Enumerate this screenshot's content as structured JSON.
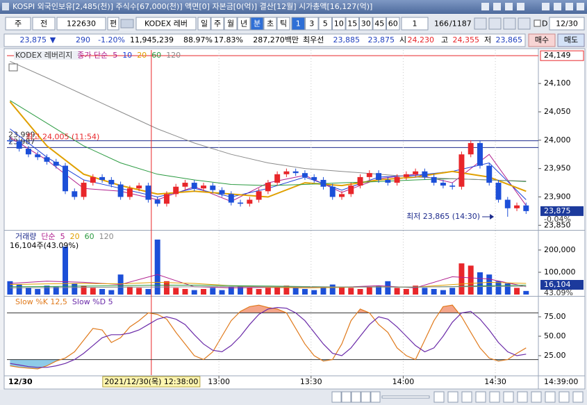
{
  "header": {
    "title": "KOSPI 외국인보유[2,485(천)] 주식수[67,000(천)] 액면[0] 자본금[0(억)] 결산[12월] 시가총액[16,127(억)]"
  },
  "toolbar": {
    "market": "주",
    "mode": "전",
    "code": "122630",
    "edit": "편",
    "name": "KODEX 레버",
    "periods": [
      "일",
      "주",
      "월",
      "년",
      "분",
      "초",
      "틱"
    ],
    "active_period": "분",
    "intervals": [
      "1",
      "3",
      "5",
      "10",
      "15",
      "30",
      "45",
      "60"
    ],
    "active_interval": "1",
    "unit": "1",
    "count": "166",
    "total": "/1187",
    "d": "D",
    "date": "12/30"
  },
  "quote": {
    "price": "23,875",
    "arrow": "▼",
    "change": "290",
    "rate": "-1.20%",
    "volume": "11,945,239",
    "ratio1": "88.97%",
    "ratio2": "17.83%",
    "amount": "287,270백만",
    "best": "최우선",
    "bid1": "23,885",
    "bid2": "23,875",
    "open_label": "시",
    "open": "24,230",
    "high_label": "고",
    "high": "24,355",
    "low_label": "저",
    "low": "23,865",
    "buy": "매수",
    "sell": "매도"
  },
  "chart_data": [
    {
      "type": "candlestick",
      "title": "KODEX 레버리지",
      "ma_label": "종가 단순",
      "x": [
        712,
        715,
        718,
        721,
        724,
        727,
        730,
        733,
        736,
        739,
        742,
        745,
        748,
        751,
        754,
        757,
        760,
        763,
        766,
        769,
        772,
        775,
        778,
        781,
        784,
        787,
        790,
        793,
        796,
        799,
        802,
        805,
        808,
        811,
        814,
        817,
        820,
        823,
        826,
        829,
        832,
        835,
        838,
        841,
        844,
        847,
        850,
        853,
        856,
        859,
        862,
        865,
        868,
        871,
        874,
        877,
        880
      ],
      "open": [
        24000,
        23998,
        23985,
        23975,
        23970,
        23962,
        23955,
        23910,
        23900,
        23925,
        23935,
        23930,
        23922,
        23900,
        23915,
        23920,
        23895,
        23888,
        23905,
        23918,
        23925,
        23915,
        23920,
        23912,
        23905,
        23890,
        23888,
        23895,
        23910,
        23925,
        23940,
        23945,
        23942,
        23935,
        23930,
        23918,
        23900,
        23905,
        23920,
        23935,
        23942,
        23930,
        23925,
        23935,
        23940,
        23945,
        23935,
        23925,
        23920,
        23918,
        23975,
        23995,
        23955,
        23925,
        23895,
        23880,
        23885
      ],
      "high": [
        24005,
        24003,
        23990,
        23980,
        23975,
        23967,
        23960,
        23915,
        23930,
        23940,
        23940,
        23935,
        23927,
        23920,
        23925,
        23925,
        23900,
        23910,
        23923,
        23930,
        23930,
        23925,
        23925,
        23917,
        23910,
        23895,
        23900,
        23915,
        23930,
        23945,
        23950,
        23950,
        23947,
        23940,
        23935,
        23923,
        23910,
        23925,
        23940,
        23947,
        23947,
        23935,
        23940,
        23945,
        23950,
        23950,
        23940,
        23930,
        23925,
        23980,
        24000,
        24000,
        23960,
        23930,
        23900,
        23890,
        23890
      ],
      "low": [
        23993,
        23980,
        23970,
        23965,
        23957,
        23950,
        23905,
        23895,
        23895,
        23920,
        23925,
        23917,
        23895,
        23895,
        23910,
        23890,
        23883,
        23883,
        23900,
        23913,
        23910,
        23910,
        23907,
        23900,
        23885,
        23883,
        23883,
        23890,
        23905,
        23920,
        23935,
        23937,
        23930,
        23925,
        23913,
        23895,
        23895,
        23900,
        23915,
        23930,
        23925,
        23920,
        23920,
        23930,
        23935,
        23930,
        23920,
        23915,
        23913,
        23913,
        23970,
        23950,
        23920,
        23890,
        23865,
        23875,
        23870
      ],
      "close": [
        23998,
        23985,
        23975,
        23970,
        23962,
        23955,
        23910,
        23900,
        23925,
        23935,
        23930,
        23922,
        23900,
        23915,
        23920,
        23895,
        23888,
        23905,
        23918,
        23925,
        23915,
        23920,
        23912,
        23905,
        23890,
        23888,
        23895,
        23910,
        23925,
        23940,
        23945,
        23942,
        23935,
        23930,
        23918,
        23900,
        23905,
        23920,
        23935,
        23942,
        23930,
        23925,
        23935,
        23940,
        23945,
        23935,
        23925,
        23920,
        23918,
        23975,
        23995,
        23955,
        23925,
        23895,
        23880,
        23885,
        23875
      ],
      "up_color": "#e8262a",
      "down_color": "#1c4fd8",
      "xlim": [
        711,
        884
      ],
      "ylim": [
        23843,
        24159
      ],
      "yticks": [
        {
          "value": 23850,
          "label": "23,850"
        },
        {
          "value": 23900,
          "label": "23,900"
        },
        {
          "value": 23950,
          "label": "23,950"
        },
        {
          "value": 24000,
          "label": "24,000"
        },
        {
          "value": 24050,
          "label": "24,050"
        },
        {
          "value": 24100,
          "label": "24,100"
        }
      ],
      "lines": {
        "x": [
          712,
          724,
          736,
          748,
          760,
          772,
          784,
          796,
          808,
          820,
          832,
          844,
          856,
          868,
          880
        ],
        "series": [
          {
            "name": "5",
            "color": "#b0208e",
            "values": [
              24005,
              23965,
              23915,
              23910,
              23895,
              23918,
              23892,
              23925,
              23938,
              23908,
              23932,
              23940,
              23925,
              23975,
              23885
            ]
          },
          {
            "name": "10",
            "color": "#1b3fd8",
            "values": [
              24020,
              23970,
              23930,
              23915,
              23900,
              23915,
              23900,
              23915,
              23935,
              23912,
              23935,
              23938,
              23945,
              23960,
              23895
            ]
          },
          {
            "name": "20",
            "color": "#e0a000",
            "values": [
              24068,
              23990,
              23940,
              23920,
              23905,
              23910,
              23905,
              23900,
              23925,
              23920,
              23930,
              23935,
              23945,
              23935,
              23910
            ]
          },
          {
            "name": "60",
            "color": "#2a9a40",
            "values": [
              24070,
              24030,
              23990,
              23960,
              23940,
              23930,
              23922,
              23920,
              23922,
              23925,
              23927,
              23930,
              23932,
              23930,
              23927
            ]
          },
          {
            "name": "120",
            "color": "#8a8a8a",
            "values": [
              24139,
              24110,
              24080,
              24050,
              24020,
              23995,
              23975,
              23960,
              23950,
              23945,
              23940,
              23935,
              23932,
              23930,
              23928
            ]
          }
        ]
      },
      "levels": [
        {
          "value": 23999,
          "label": "23,999"
        },
        {
          "value": 23987,
          "label": "23,987"
        }
      ],
      "level_color": "#1c2a8c",
      "top_line": {
        "value": 24149,
        "label": "24,149",
        "color": "#e8262a"
      },
      "last": {
        "value": 23875,
        "label": "23,875"
      },
      "last_change": "-0.04%",
      "annotations": [
        {
          "text": "최고 24,005 (11:54)",
          "x": 714,
          "y": 24005,
          "color": "#e8262a"
        },
        {
          "text": "최저 23,865 (14:30)",
          "x": 870,
          "y": 23865,
          "color": "#1c2a8c"
        }
      ],
      "cursor": {
        "x": 758,
        "label": "2021/12/30(목) 12:38:00",
        "color": "#e8262a"
      }
    },
    {
      "type": "bar",
      "title": "거래량",
      "ma_label": "단순",
      "summary": "16,104주(43.09%)",
      "x": [
        712,
        715,
        718,
        721,
        724,
        727,
        730,
        733,
        736,
        739,
        742,
        745,
        748,
        751,
        754,
        757,
        760,
        763,
        766,
        769,
        772,
        775,
        778,
        781,
        784,
        787,
        790,
        793,
        796,
        799,
        802,
        805,
        808,
        811,
        814,
        817,
        820,
        823,
        826,
        829,
        832,
        835,
        838,
        841,
        844,
        847,
        850,
        853,
        856,
        859,
        862,
        865,
        868,
        871,
        874,
        877,
        880
      ],
      "values": [
        60000,
        45000,
        30000,
        25000,
        40000,
        35000,
        215000,
        50000,
        40000,
        30000,
        25000,
        20000,
        90000,
        35000,
        30000,
        25000,
        247000,
        60000,
        30000,
        25000,
        20000,
        25000,
        30000,
        20000,
        35000,
        40000,
        30000,
        25000,
        30000,
        35000,
        40000,
        30000,
        25000,
        20000,
        30000,
        45000,
        35000,
        30000,
        25000,
        35000,
        40000,
        60000,
        30000,
        25000,
        40000,
        30000,
        25000,
        20000,
        30000,
        140000,
        130000,
        100000,
        90000,
        60000,
        50000,
        30000,
        16104
      ],
      "xlim": [
        711,
        884
      ],
      "ylim": [
        0,
        284000
      ],
      "yticks": [
        {
          "value": 100000,
          "label": "100,000"
        },
        {
          "value": 200000,
          "label": "200,000"
        }
      ],
      "lines": {
        "x": [
          712,
          724,
          736,
          748,
          760,
          772,
          784,
          796,
          808,
          820,
          832,
          844,
          856,
          868,
          880
        ],
        "series": [
          {
            "name": "5",
            "color": "#b0208e",
            "values": [
              50000,
              60000,
              55000,
              45000,
              90000,
              35000,
              30000,
              32000,
              30000,
              33000,
              40000,
              30000,
              80000,
              70000,
              35000
            ]
          },
          {
            "name": "20",
            "color": "#e0a000",
            "values": [
              45000,
              48000,
              50000,
              48000,
              55000,
              50000,
              40000,
              33000,
              30000,
              32000,
              35000,
              33000,
              45000,
              55000,
              50000
            ]
          },
          {
            "name": "60",
            "color": "#2a9a40",
            "values": [
              35000,
              36000,
              38000,
              40000,
              42000,
              42000,
              40000,
              38000,
              36000,
              34000,
              34000,
              33000,
              36000,
              40000,
              42000
            ]
          },
          {
            "name": "120",
            "color": "#8a8a8a",
            "values": [
              30000,
              31000,
              32000,
              33000,
              34000,
              35000,
              35000,
              35000,
              34000,
              34000,
              34000,
              34000,
              35000,
              36000,
              37000
            ]
          }
        ]
      },
      "last": {
        "value": 16104,
        "label": "16,104"
      },
      "last_pct": "43.09%"
    },
    {
      "type": "line",
      "x": [
        712,
        715,
        718,
        721,
        724,
        727,
        730,
        733,
        736,
        739,
        742,
        745,
        748,
        751,
        754,
        757,
        760,
        763,
        766,
        769,
        772,
        775,
        778,
        781,
        784,
        787,
        790,
        793,
        796,
        799,
        802,
        805,
        808,
        811,
        814,
        817,
        820,
        823,
        826,
        829,
        832,
        835,
        838,
        841,
        844,
        847,
        850,
        853,
        856,
        859,
        862,
        865,
        868,
        871,
        874,
        877,
        880
      ],
      "series": [
        {
          "name": "Slow %K 12,5",
          "color": "#e07a1c",
          "values": [
            12,
            10,
            9,
            8,
            12,
            18,
            22,
            30,
            45,
            60,
            58,
            42,
            48,
            62,
            70,
            80,
            78,
            72,
            55,
            40,
            25,
            20,
            30,
            50,
            70,
            82,
            88,
            90,
            87,
            85,
            80,
            60,
            40,
            25,
            18,
            20,
            40,
            70,
            85,
            80,
            65,
            55,
            35,
            25,
            20,
            45,
            70,
            88,
            90,
            75,
            55,
            35,
            22,
            18,
            20,
            28,
            35
          ]
        },
        {
          "name": "Slow %D 5",
          "color": "#6a2aa8",
          "values": [
            15,
            13,
            11,
            10,
            10,
            12,
            15,
            20,
            28,
            38,
            48,
            52,
            52,
            54,
            58,
            65,
            72,
            75,
            72,
            65,
            52,
            40,
            32,
            30,
            38,
            50,
            65,
            78,
            85,
            87,
            86,
            80,
            70,
            55,
            40,
            28,
            25,
            35,
            50,
            65,
            75,
            72,
            62,
            50,
            38,
            30,
            35,
            50,
            68,
            80,
            82,
            72,
            58,
            42,
            30,
            25,
            27
          ]
        }
      ],
      "xlim": [
        711,
        884
      ],
      "ylim": [
        0,
        100
      ],
      "yticks": [
        {
          "value": 25,
          "label": "25.00"
        },
        {
          "value": 50,
          "label": "50.00"
        },
        {
          "value": 75,
          "label": "75.00"
        }
      ],
      "ref_lines": [
        80,
        20
      ],
      "overbought_fill": "#f4a58a",
      "oversold_fill": "#8ecbe8",
      "xticks": [
        {
          "value": 780,
          "label": "13:00"
        },
        {
          "value": 810,
          "label": "13:30"
        },
        {
          "value": 840,
          "label": "14:00"
        },
        {
          "value": 870,
          "label": "14:30"
        }
      ],
      "date_label": "12/30",
      "end_label": "14:39:00"
    }
  ]
}
